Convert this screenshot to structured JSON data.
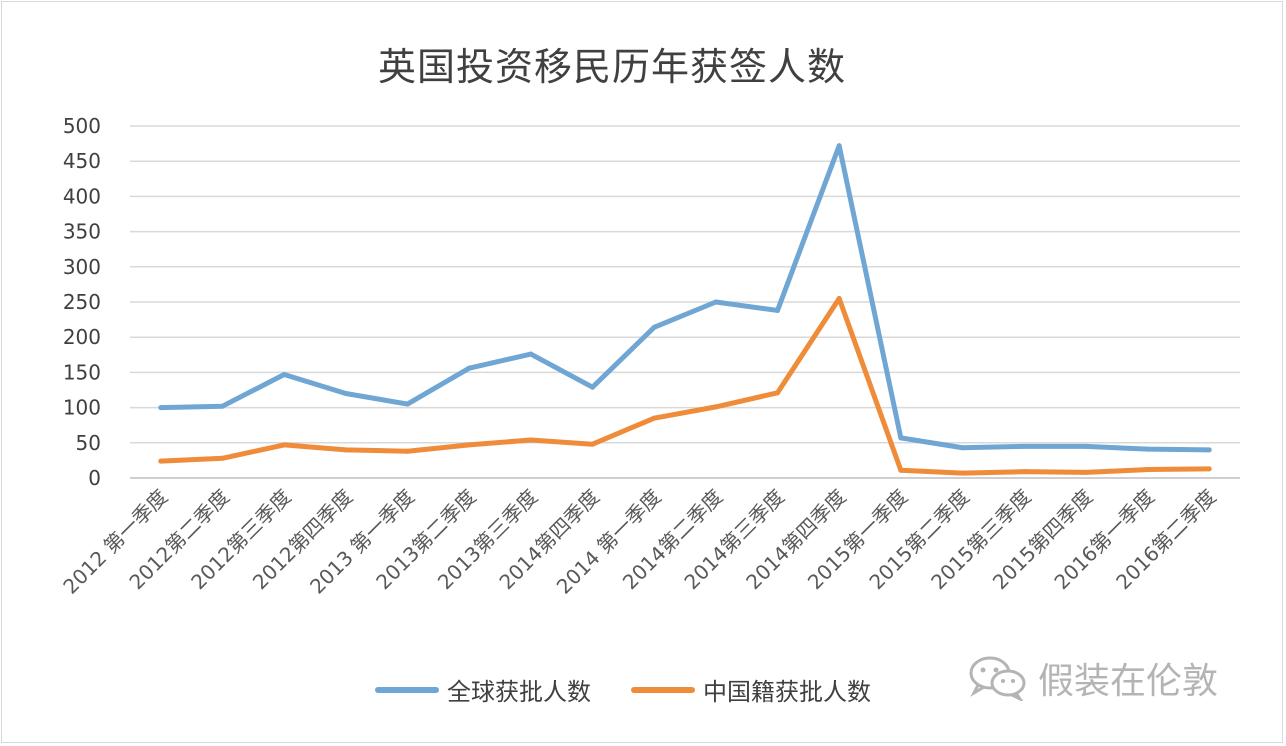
{
  "chart_data": {
    "type": "line",
    "title": "英国投资移民历年获签人数",
    "categories": [
      "2012 第一季度",
      "2012第二季度",
      "2012第三季度",
      "2012第四季度",
      "2013 第一季度",
      "2013第二季度",
      "2013第三季度",
      "2014第四季度",
      "2014 第一季度",
      "2014第二季度",
      "2014第三季度",
      "2014第四季度",
      "2015第一季度",
      "2015第二季度",
      "2015第三季度",
      "2015第四季度",
      "2016第一季度",
      "2016第二季度"
    ],
    "series": [
      {
        "name": "全球获批人数",
        "color": "#70a6d4",
        "values": [
          100,
          102,
          147,
          120,
          105,
          156,
          176,
          129,
          214,
          250,
          238,
          472,
          57,
          43,
          45,
          45,
          41,
          40
        ]
      },
      {
        "name": "中国籍获批人数",
        "color": "#ef8c3a",
        "values": [
          24,
          28,
          47,
          40,
          38,
          47,
          54,
          48,
          85,
          101,
          121,
          255,
          11,
          7,
          9,
          8,
          12,
          13
        ]
      }
    ],
    "yticks": [
      0,
      50,
      100,
      150,
      200,
      250,
      300,
      350,
      400,
      450,
      500
    ],
    "ylim": [
      0,
      500
    ],
    "grid": true,
    "legend_position": "bottom",
    "xlabel": "",
    "ylabel": ""
  },
  "watermark": {
    "text": "假装在伦敦",
    "icon": "wechat-icon"
  }
}
